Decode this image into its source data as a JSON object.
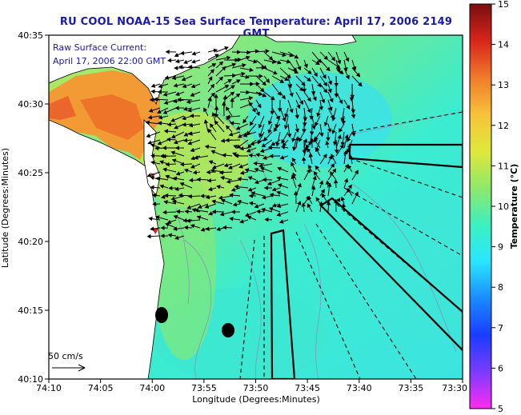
{
  "title": "RU COOL  NOAA-15 Sea Surface Temperature:  April 17, 2006 2149 GMT",
  "legend": {
    "line1": "Raw Surface Current:",
    "line2": "April 17, 2006 22:00 GMT"
  },
  "scale_label": "50 cm/s",
  "x_axis": {
    "title": "Longitude (Degrees:Minutes)",
    "ticks": [
      "74:10",
      "74:05",
      "74:00",
      "73:55",
      "73:50",
      "73:45",
      "73:40",
      "73:35",
      "73:30"
    ]
  },
  "y_axis": {
    "title": "Latitude (Degrees:Minutes)",
    "ticks": [
      "40:35",
      "40:30",
      "40:25",
      "40:20",
      "40:15",
      "40:10"
    ]
  },
  "colorbar": {
    "title": "Temperature (°C)",
    "min": 5,
    "max": 15,
    "ticks": [
      "15",
      "14",
      "13",
      "12",
      "11",
      "10",
      "9",
      "8",
      "7",
      "6",
      "5"
    ],
    "stops": [
      "#ff2bf2",
      "#7a3cff",
      "#1a3cff",
      "#1a8cff",
      "#29e6ff",
      "#3df0c0",
      "#8ee86a",
      "#dfe83a",
      "#f7c23a",
      "#f07a2a",
      "#d8251c",
      "#7a0e10"
    ]
  },
  "colors": {
    "title": "#1a1ab0",
    "land": "#ffffff",
    "coast": "#000000",
    "arrow": "#000000"
  }
}
